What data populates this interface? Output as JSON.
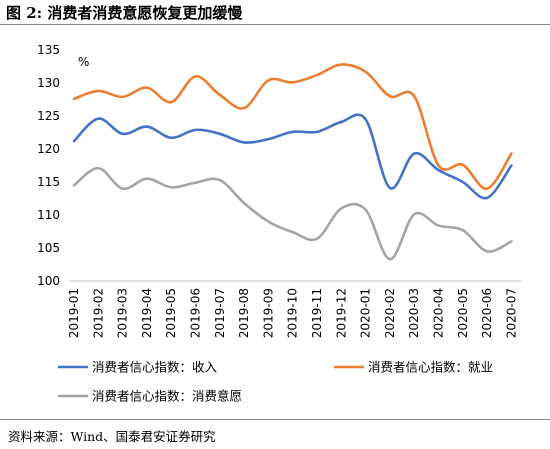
{
  "figure": {
    "title": "图 2:  消费者消费意愿恢复更加缓慢",
    "source": "资料来源：Wind、国泰君安证券研究"
  },
  "chart_data": {
    "type": "line",
    "ylabel": "%",
    "ylim": [
      100,
      135
    ],
    "yticks": [
      100,
      105,
      110,
      115,
      120,
      125,
      130,
      135
    ],
    "grid": false,
    "legend_position": "bottom",
    "categories": [
      "2019-01",
      "2019-02",
      "2019-03",
      "2019-04",
      "2019-05",
      "2019-06",
      "2019-07",
      "2019-08",
      "2019-09",
      "2019-10",
      "2019-11",
      "2019-12",
      "2020-01",
      "2020-02",
      "2020-03",
      "2020-04",
      "2020-05",
      "2020-06",
      "2020-07"
    ],
    "series": [
      {
        "name": "消费者信心指数：收入",
        "color": "#4472C4",
        "values": [
          121.2,
          124.6,
          122.3,
          123.4,
          121.7,
          122.9,
          122.3,
          121.0,
          121.5,
          122.6,
          122.6,
          124.1,
          124.5,
          114.1,
          119.3,
          116.8,
          115.0,
          112.6,
          117.5
        ]
      },
      {
        "name": "消费者信心指数：就业",
        "color": "#ED7D31",
        "values": [
          127.6,
          128.8,
          127.9,
          129.3,
          127.1,
          131.0,
          128.2,
          126.2,
          130.4,
          130.1,
          131.2,
          132.8,
          131.7,
          128.0,
          128.0,
          117.5,
          117.6,
          114.0,
          119.3
        ]
      },
      {
        "name": "消费者信心指数：消费意愿",
        "color": "#A5A5A5",
        "values": [
          114.5,
          117.1,
          114.0,
          115.5,
          114.2,
          114.9,
          115.3,
          111.8,
          109.0,
          107.4,
          106.4,
          111.0,
          110.8,
          103.3,
          110.1,
          108.4,
          107.7,
          104.5,
          106.0
        ]
      }
    ]
  }
}
